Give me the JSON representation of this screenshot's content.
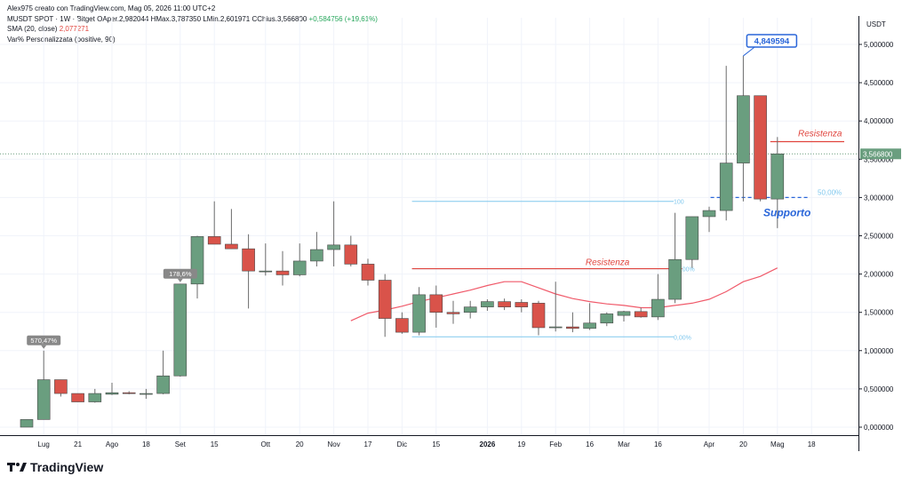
{
  "header": {
    "credit": "Alex975 creato con TradingView.com, Mag 05, 2026 11:00 UTC+2",
    "symbol": "MUSDT SPOT · 1W · Bitget",
    "ohlc": {
      "open_label": "O",
      "open": "Aper.2,982044",
      "high_label": "H",
      "high": "Max.3,787350",
      "low_label": "L",
      "low": "Min.2,601971",
      "close_label": "C",
      "close": "Chius.3,566800",
      "change": "+0,584756 (+19,61%)"
    },
    "sma_label": "SMA (20, close)",
    "sma_value": "2,077271",
    "var_label": "Var% Personalizzata (positive, 90)"
  },
  "axis": {
    "currency": "USDT"
  },
  "branding": {
    "name": "TradingView",
    "logo": "tradingview-logo-icon"
  },
  "colors": {
    "up": "#6a9e7f",
    "down": "#d9534a",
    "sma": "#f05a6a",
    "resist": "#e0443d",
    "support": "#2a66d9",
    "fib": "#80c8ee",
    "callout": "#2a66d9"
  },
  "chart_data": {
    "type": "candlestick",
    "timeframe": "1W",
    "ylim": [
      0,
      5.0
    ],
    "yticks": [
      "0,000000",
      "0,500000",
      "1,000000",
      "1,500000",
      "2,000000",
      "2,500000",
      "3,000000",
      "3,500000",
      "4,000000",
      "4,500000",
      "5,000000"
    ],
    "x_tick_labels": [
      {
        "i": 1,
        "label": "Lug"
      },
      {
        "i": 3,
        "label": "21"
      },
      {
        "i": 5,
        "label": "Ago"
      },
      {
        "i": 7,
        "label": "18"
      },
      {
        "i": 9,
        "label": "Set"
      },
      {
        "i": 11,
        "label": "15"
      },
      {
        "i": 14,
        "label": "Ott"
      },
      {
        "i": 16,
        "label": "20"
      },
      {
        "i": 18,
        "label": "Nov"
      },
      {
        "i": 20,
        "label": "17"
      },
      {
        "i": 22,
        "label": "Dic"
      },
      {
        "i": 24,
        "label": "15"
      },
      {
        "i": 27,
        "label": "2026",
        "bold": true
      },
      {
        "i": 29,
        "label": "19"
      },
      {
        "i": 31,
        "label": "Feb"
      },
      {
        "i": 33,
        "label": "16"
      },
      {
        "i": 35,
        "label": "Mar"
      },
      {
        "i": 37,
        "label": "16"
      },
      {
        "i": 40,
        "label": "Apr"
      },
      {
        "i": 42,
        "label": "20"
      },
      {
        "i": 44,
        "label": "Mag"
      },
      {
        "i": 46,
        "label": "18"
      }
    ],
    "candles": [
      {
        "o": 0.0,
        "h": 0.1,
        "l": 0.0,
        "c": 0.1
      },
      {
        "o": 0.1,
        "h": 1.0,
        "l": 0.1,
        "c": 0.62
      },
      {
        "o": 0.62,
        "h": 0.62,
        "l": 0.4,
        "c": 0.44
      },
      {
        "o": 0.44,
        "h": 0.44,
        "l": 0.33,
        "c": 0.33
      },
      {
        "o": 0.33,
        "h": 0.5,
        "l": 0.32,
        "c": 0.44
      },
      {
        "o": 0.43,
        "h": 0.58,
        "l": 0.42,
        "c": 0.45
      },
      {
        "o": 0.45,
        "h": 0.47,
        "l": 0.43,
        "c": 0.44
      },
      {
        "o": 0.44,
        "h": 0.5,
        "l": 0.37,
        "c": 0.44
      },
      {
        "o": 0.44,
        "h": 1.0,
        "l": 0.43,
        "c": 0.67
      },
      {
        "o": 0.67,
        "h": 1.85,
        "l": 0.66,
        "c": 1.87
      },
      {
        "o": 1.87,
        "h": 2.5,
        "l": 1.68,
        "c": 2.49
      },
      {
        "o": 2.49,
        "h": 2.95,
        "l": 2.4,
        "c": 2.39
      },
      {
        "o": 2.39,
        "h": 2.85,
        "l": 2.33,
        "c": 2.33
      },
      {
        "o": 2.33,
        "h": 2.52,
        "l": 1.55,
        "c": 2.04
      },
      {
        "o": 2.04,
        "h": 2.4,
        "l": 1.98,
        "c": 2.04
      },
      {
        "o": 2.04,
        "h": 2.3,
        "l": 1.85,
        "c": 1.99
      },
      {
        "o": 1.99,
        "h": 2.4,
        "l": 1.97,
        "c": 2.17
      },
      {
        "o": 2.17,
        "h": 2.55,
        "l": 2.1,
        "c": 2.32
      },
      {
        "o": 2.32,
        "h": 2.95,
        "l": 2.1,
        "c": 2.38
      },
      {
        "o": 2.38,
        "h": 2.5,
        "l": 2.1,
        "c": 2.13
      },
      {
        "o": 2.13,
        "h": 2.2,
        "l": 1.85,
        "c": 1.92
      },
      {
        "o": 1.92,
        "h": 2.0,
        "l": 1.18,
        "c": 1.42
      },
      {
        "o": 1.42,
        "h": 1.5,
        "l": 1.22,
        "c": 1.24
      },
      {
        "o": 1.24,
        "h": 1.83,
        "l": 1.2,
        "c": 1.73
      },
      {
        "o": 1.73,
        "h": 1.85,
        "l": 1.3,
        "c": 1.5
      },
      {
        "o": 1.5,
        "h": 1.65,
        "l": 1.35,
        "c": 1.48
      },
      {
        "o": 1.5,
        "h": 1.65,
        "l": 1.42,
        "c": 1.57
      },
      {
        "o": 1.57,
        "h": 1.67,
        "l": 1.52,
        "c": 1.64
      },
      {
        "o": 1.64,
        "h": 1.68,
        "l": 1.53,
        "c": 1.57
      },
      {
        "o": 1.63,
        "h": 1.67,
        "l": 1.5,
        "c": 1.57
      },
      {
        "o": 1.62,
        "h": 1.65,
        "l": 1.2,
        "c": 1.3
      },
      {
        "o": 1.3,
        "h": 1.9,
        "l": 1.25,
        "c": 1.31
      },
      {
        "o": 1.31,
        "h": 1.5,
        "l": 1.24,
        "c": 1.29
      },
      {
        "o": 1.29,
        "h": 1.62,
        "l": 1.27,
        "c": 1.36
      },
      {
        "o": 1.36,
        "h": 1.5,
        "l": 1.32,
        "c": 1.48
      },
      {
        "o": 1.46,
        "h": 1.52,
        "l": 1.38,
        "c": 1.51
      },
      {
        "o": 1.51,
        "h": 1.56,
        "l": 1.43,
        "c": 1.44
      },
      {
        "o": 1.44,
        "h": 2.0,
        "l": 1.4,
        "c": 1.67
      },
      {
        "o": 1.67,
        "h": 2.8,
        "l": 1.62,
        "c": 2.19
      },
      {
        "o": 2.19,
        "h": 2.75,
        "l": 2.08,
        "c": 2.75
      },
      {
        "o": 2.75,
        "h": 2.88,
        "l": 2.55,
        "c": 2.83
      },
      {
        "o": 2.83,
        "h": 4.72,
        "l": 2.7,
        "c": 3.45
      },
      {
        "o": 3.45,
        "h": 4.85,
        "l": 2.95,
        "c": 4.33
      },
      {
        "o": 4.33,
        "h": 4.33,
        "l": 2.95,
        "c": 2.98
      },
      {
        "o": 2.98,
        "h": 3.79,
        "l": 2.6,
        "c": 3.57
      }
    ],
    "sma": [
      null,
      null,
      null,
      null,
      null,
      null,
      null,
      null,
      null,
      null,
      null,
      null,
      null,
      null,
      null,
      null,
      null,
      null,
      null,
      1.39,
      1.49,
      1.53,
      1.58,
      1.64,
      1.69,
      1.74,
      1.79,
      1.85,
      1.9,
      1.9,
      1.82,
      1.74,
      1.68,
      1.64,
      1.61,
      1.59,
      1.56,
      1.56,
      1.59,
      1.62,
      1.67,
      1.77,
      1.9,
      1.97,
      2.08
    ],
    "lines": [
      {
        "name": "resistance",
        "label": "Resistenza",
        "y": 2.07,
        "from": 23,
        "to": 38
      },
      {
        "name": "resistance",
        "label": "Resistenza",
        "y": 3.73,
        "from": 44,
        "to": 47.5
      },
      {
        "name": "support",
        "label": "Supporto",
        "y": 3.0,
        "from": 40.5,
        "to": 45.5
      }
    ],
    "fib": {
      "from": 23,
      "to": 37.5,
      "levels": [
        {
          "label": "100",
          "y": 2.95
        },
        {
          "label": "50,00%",
          "y": 2.07
        },
        {
          "label": "0,00%",
          "y": 1.18
        }
      ],
      "right_label": "50,00%"
    },
    "labels": [
      {
        "i": 1,
        "y": 1.0,
        "text": "570,47%"
      },
      {
        "i": 9,
        "y": 1.87,
        "text": "178,6%"
      }
    ],
    "callout": {
      "i": 42,
      "y": 4.85,
      "text": "4,849594"
    },
    "last_price": {
      "y": 3.57,
      "text": "3,566800"
    }
  }
}
